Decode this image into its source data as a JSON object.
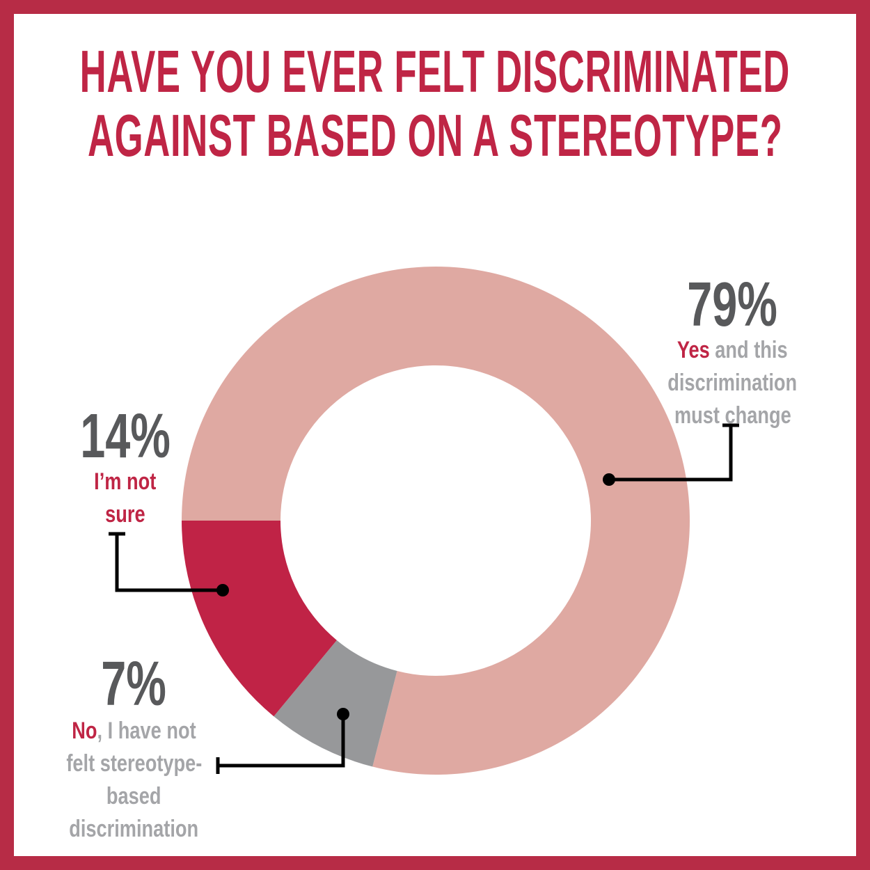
{
  "title": {
    "line1": "HAVE YOU EVER FELT DISCRIMINATED",
    "line2": "AGAINST BASED ON A STEREOTYPE?"
  },
  "colors": {
    "frame_border": "#b72c46",
    "title_text": "#bf2545",
    "pct_text": "#58595b",
    "description_text": "#a4a5a8",
    "highlight_text": "#bf2545",
    "leader_line": "#000000",
    "background": "#ffffff"
  },
  "chart_data": {
    "type": "pie",
    "variant": "donut",
    "title": "Have you ever felt discriminated against based on a stereotype?",
    "start_angle_deg_clockwise_from_top": 270,
    "legend_position": "callout-labels",
    "segments": [
      {
        "id": "yes",
        "value": 79,
        "pct_label": "79%",
        "answer": "Yes",
        "description": "and this discrimination must change",
        "color": "#dfa9a2",
        "label_lines": [
          [
            {
              "t": "Yes",
              "hl": true
            },
            {
              "t": " and this"
            }
          ],
          [
            {
              "t": "discrimination"
            }
          ],
          [
            {
              "t": "must change"
            }
          ]
        ]
      },
      {
        "id": "no",
        "value": 7,
        "pct_label": "7%",
        "answer": "No",
        "description": "I have not felt stereotype-based discrimination",
        "color": "#97989a",
        "label_lines": [
          [
            {
              "t": "No",
              "hl": true
            },
            {
              "t": ", I have not"
            }
          ],
          [
            {
              "t": "felt stereotype-"
            }
          ],
          [
            {
              "t": "based"
            }
          ],
          [
            {
              "t": "discrimination"
            }
          ]
        ]
      },
      {
        "id": "not_sure",
        "value": 14,
        "pct_label": "14%",
        "answer": "I’m not sure",
        "description": "",
        "color": "#c02346",
        "label_lines": [
          [
            {
              "t": "I’m not",
              "hl": true
            }
          ],
          [
            {
              "t": "sure",
              "hl": true
            }
          ]
        ]
      }
    ]
  }
}
